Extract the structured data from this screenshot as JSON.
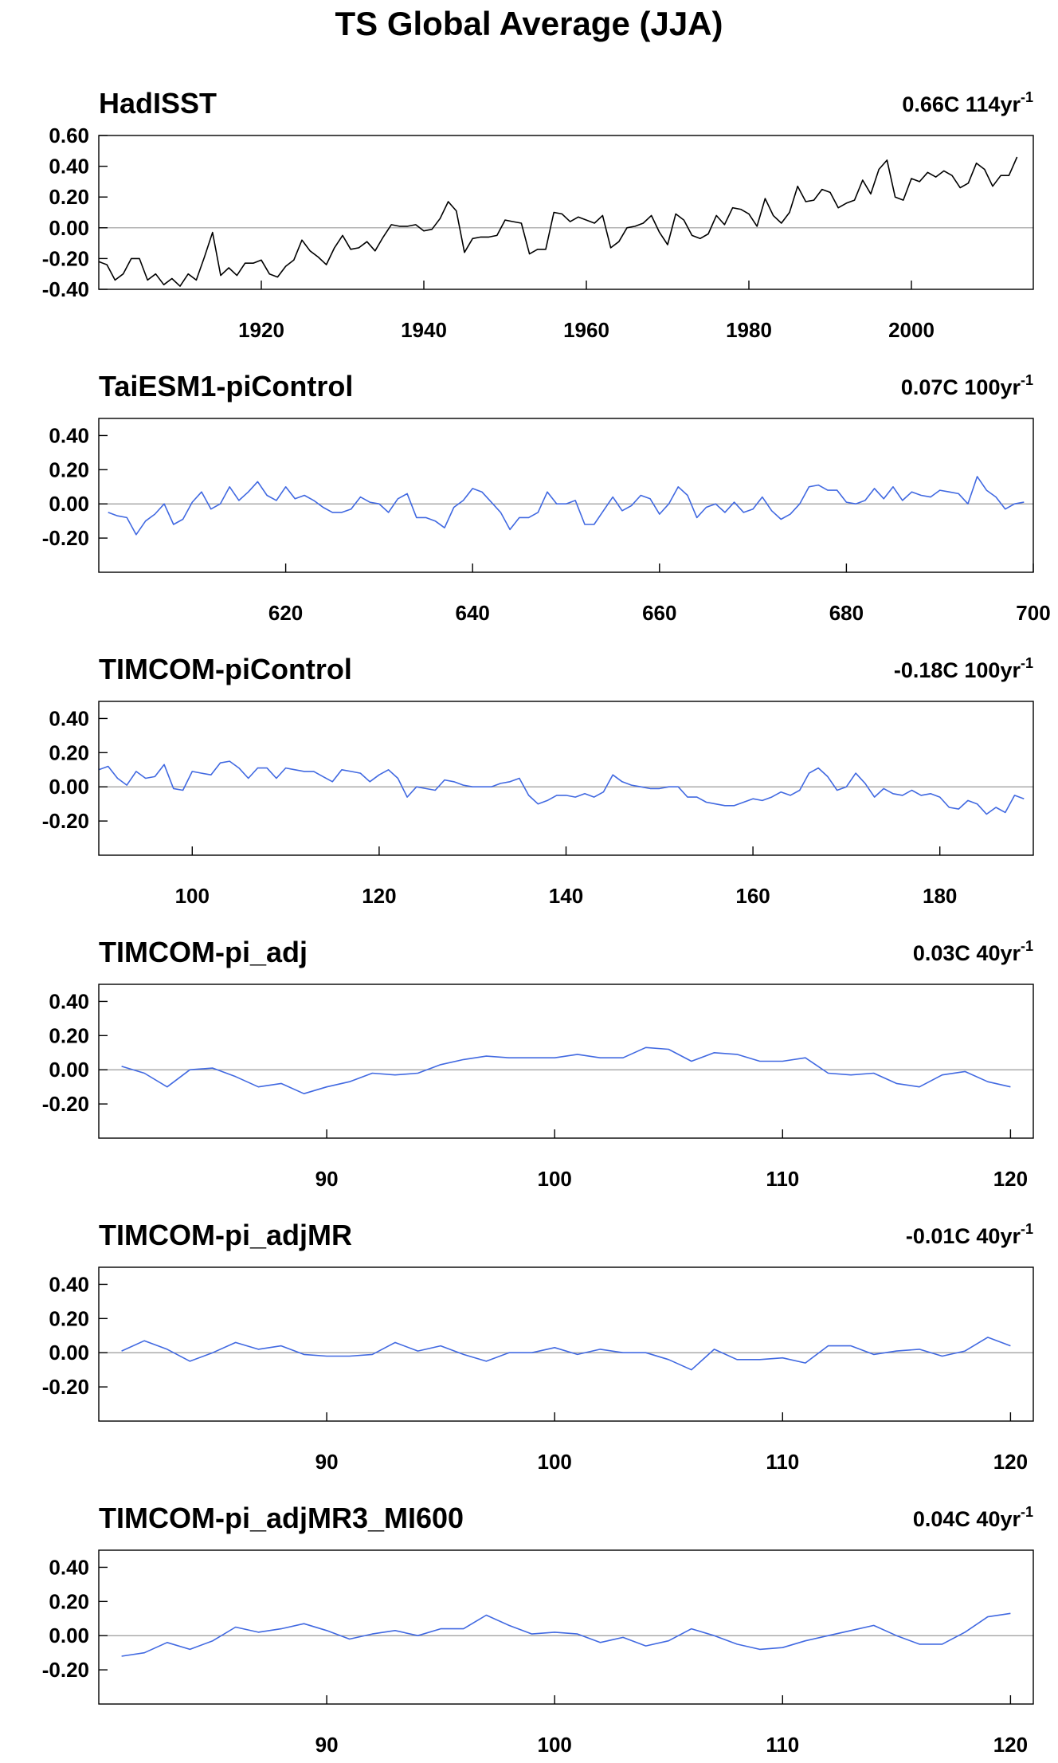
{
  "figure": {
    "title": "TS Global Average (JJA)"
  },
  "colors": {
    "observed": "#000000",
    "model": "#4169e1",
    "zero_line": "#9a9a9a"
  },
  "chart_data": [
    {
      "type": "line",
      "title": "HadISST",
      "trend": {
        "value": "0.66C 114yr",
        "exp": "-1"
      },
      "color": "#000000",
      "xlim": [
        1900,
        2015
      ],
      "ylim": [
        -0.4,
        0.6
      ],
      "yticks": [
        -0.4,
        -0.2,
        0.0,
        0.2,
        0.4,
        0.6
      ],
      "ytick_labels": [
        "-0.40",
        "-0.20",
        "0.00",
        "0.20",
        "0.40",
        "0.60"
      ],
      "xticks": [
        1920,
        1940,
        1960,
        1980,
        2000
      ],
      "xtick_labels": [
        "1920",
        "1940",
        "1960",
        "1980",
        "2000"
      ],
      "x_start": 1900,
      "y": [
        -0.22,
        -0.24,
        -0.34,
        -0.3,
        -0.2,
        -0.2,
        -0.34,
        -0.3,
        -0.37,
        -0.33,
        -0.38,
        -0.3,
        -0.34,
        -0.19,
        -0.03,
        -0.31,
        -0.26,
        -0.31,
        -0.23,
        -0.23,
        -0.21,
        -0.3,
        -0.32,
        -0.25,
        -0.21,
        -0.08,
        -0.15,
        -0.19,
        -0.24,
        -0.13,
        -0.05,
        -0.14,
        -0.13,
        -0.09,
        -0.15,
        -0.06,
        0.02,
        0.01,
        0.01,
        0.02,
        -0.02,
        -0.01,
        0.06,
        0.17,
        0.11,
        -0.16,
        -0.07,
        -0.06,
        -0.06,
        -0.05,
        0.05,
        0.04,
        0.03,
        -0.17,
        -0.14,
        -0.14,
        0.1,
        0.09,
        0.04,
        0.07,
        0.05,
        0.03,
        0.08,
        -0.13,
        -0.09,
        0.0,
        0.01,
        0.03,
        0.08,
        -0.03,
        -0.11,
        0.09,
        0.05,
        -0.05,
        -0.07,
        -0.04,
        0.08,
        0.02,
        0.13,
        0.12,
        0.09,
        0.01,
        0.19,
        0.08,
        0.03,
        0.1,
        0.27,
        0.17,
        0.18,
        0.25,
        0.23,
        0.13,
        0.16,
        0.18,
        0.31,
        0.22,
        0.38,
        0.44,
        0.2,
        0.18,
        0.32,
        0.3,
        0.36,
        0.33,
        0.37,
        0.34,
        0.26,
        0.29,
        0.42,
        0.38,
        0.27,
        0.34,
        0.34,
        0.46
      ]
    },
    {
      "type": "line",
      "title": "TaiESM1-piControl",
      "trend": {
        "value": "0.07C 100yr",
        "exp": "-1"
      },
      "color": "#4169e1",
      "xlim": [
        600,
        700
      ],
      "ylim": [
        -0.4,
        0.5
      ],
      "yticks": [
        -0.2,
        0.0,
        0.2,
        0.4
      ],
      "ytick_labels": [
        "-0.20",
        "0.00",
        "0.20",
        "0.40"
      ],
      "xticks": [
        620,
        640,
        660,
        680,
        700
      ],
      "xtick_labels": [
        "620",
        "640",
        "660",
        "680",
        "700"
      ],
      "x_start": 601,
      "y": [
        -0.05,
        -0.07,
        -0.08,
        -0.18,
        -0.1,
        -0.06,
        0.0,
        -0.12,
        -0.09,
        0.01,
        0.07,
        -0.03,
        0.0,
        0.1,
        0.02,
        0.07,
        0.13,
        0.05,
        0.02,
        0.1,
        0.03,
        0.05,
        0.02,
        -0.02,
        -0.05,
        -0.05,
        -0.03,
        0.04,
        0.01,
        0.0,
        -0.05,
        0.03,
        0.06,
        -0.08,
        -0.08,
        -0.1,
        -0.14,
        -0.02,
        0.02,
        0.09,
        0.07,
        0.01,
        -0.05,
        -0.15,
        -0.08,
        -0.08,
        -0.05,
        0.07,
        0.0,
        0.0,
        0.02,
        -0.12,
        -0.12,
        -0.04,
        0.04,
        -0.04,
        -0.01,
        0.05,
        0.03,
        -0.06,
        0.0,
        0.1,
        0.05,
        -0.08,
        -0.02,
        0.0,
        -0.05,
        0.01,
        -0.05,
        -0.03,
        0.04,
        -0.04,
        -0.09,
        -0.06,
        0.0,
        0.1,
        0.11,
        0.08,
        0.08,
        0.01,
        0.0,
        0.02,
        0.09,
        0.03,
        0.1,
        0.02,
        0.07,
        0.05,
        0.04,
        0.08,
        0.07,
        0.06,
        0.0,
        0.16,
        0.08,
        0.04,
        -0.03,
        0.0,
        0.01
      ]
    },
    {
      "type": "line",
      "title": "TIMCOM-piControl",
      "trend": {
        "value": "-0.18C 100yr",
        "exp": "-1"
      },
      "color": "#4169e1",
      "xlim": [
        90,
        190
      ],
      "ylim": [
        -0.4,
        0.5
      ],
      "yticks": [
        -0.2,
        0.0,
        0.2,
        0.4
      ],
      "ytick_labels": [
        "-0.20",
        "0.00",
        "0.20",
        "0.40"
      ],
      "xticks": [
        100,
        120,
        140,
        160,
        180
      ],
      "xtick_labels": [
        "100",
        "120",
        "140",
        "160",
        "180"
      ],
      "x_start": 90,
      "y": [
        0.1,
        0.12,
        0.05,
        0.01,
        0.09,
        0.05,
        0.06,
        0.13,
        -0.01,
        -0.02,
        0.09,
        0.08,
        0.07,
        0.14,
        0.15,
        0.11,
        0.05,
        0.11,
        0.11,
        0.05,
        0.11,
        0.1,
        0.09,
        0.09,
        0.06,
        0.03,
        0.1,
        0.09,
        0.08,
        0.03,
        0.07,
        0.1,
        0.05,
        -0.06,
        0.0,
        -0.01,
        -0.02,
        0.04,
        0.03,
        0.01,
        0.0,
        0.0,
        0.0,
        0.02,
        0.03,
        0.05,
        -0.05,
        -0.1,
        -0.08,
        -0.05,
        -0.05,
        -0.06,
        -0.04,
        -0.06,
        -0.03,
        0.07,
        0.03,
        0.01,
        0.0,
        -0.01,
        -0.01,
        0.0,
        0.0,
        -0.06,
        -0.06,
        -0.09,
        -0.1,
        -0.11,
        -0.11,
        -0.09,
        -0.07,
        -0.08,
        -0.06,
        -0.03,
        -0.05,
        -0.02,
        0.08,
        0.11,
        0.06,
        -0.02,
        0.0,
        0.08,
        0.02,
        -0.06,
        -0.01,
        -0.04,
        -0.05,
        -0.02,
        -0.05,
        -0.04,
        -0.06,
        -0.12,
        -0.13,
        -0.08,
        -0.1,
        -0.16,
        -0.12,
        -0.15,
        -0.05,
        -0.07
      ]
    },
    {
      "type": "line",
      "title": "TIMCOM-pi_adj",
      "trend": {
        "value": "0.03C 40yr",
        "exp": "-1"
      },
      "color": "#4169e1",
      "xlim": [
        80,
        121
      ],
      "ylim": [
        -0.4,
        0.5
      ],
      "yticks": [
        -0.2,
        0.0,
        0.2,
        0.4
      ],
      "ytick_labels": [
        "-0.20",
        "0.00",
        "0.20",
        "0.40"
      ],
      "xticks": [
        90,
        100,
        110,
        120
      ],
      "xtick_labels": [
        "90",
        "100",
        "110",
        "120"
      ],
      "x_start": 81,
      "y": [
        0.02,
        -0.02,
        -0.1,
        0.0,
        0.01,
        -0.04,
        -0.1,
        -0.08,
        -0.14,
        -0.1,
        -0.07,
        -0.02,
        -0.03,
        -0.02,
        0.03,
        0.06,
        0.08,
        0.07,
        0.07,
        0.07,
        0.09,
        0.07,
        0.07,
        0.13,
        0.12,
        0.05,
        0.1,
        0.09,
        0.05,
        0.05,
        0.07,
        -0.02,
        -0.03,
        -0.02,
        -0.08,
        -0.1,
        -0.03,
        -0.01,
        -0.07,
        -0.1
      ]
    },
    {
      "type": "line",
      "title": "TIMCOM-pi_adjMR",
      "trend": {
        "value": "-0.01C 40yr",
        "exp": "-1"
      },
      "color": "#4169e1",
      "xlim": [
        80,
        121
      ],
      "ylim": [
        -0.4,
        0.5
      ],
      "yticks": [
        -0.2,
        0.0,
        0.2,
        0.4
      ],
      "ytick_labels": [
        "-0.20",
        "0.00",
        "0.20",
        "0.40"
      ],
      "xticks": [
        90,
        100,
        110,
        120
      ],
      "xtick_labels": [
        "90",
        "100",
        "110",
        "120"
      ],
      "x_start": 81,
      "y": [
        0.01,
        0.07,
        0.02,
        -0.05,
        0.0,
        0.06,
        0.02,
        0.04,
        -0.01,
        -0.02,
        -0.02,
        -0.01,
        0.06,
        0.01,
        0.04,
        -0.01,
        -0.05,
        0.0,
        0.0,
        0.03,
        -0.01,
        0.02,
        0.0,
        0.0,
        -0.04,
        -0.1,
        0.02,
        -0.04,
        -0.04,
        -0.03,
        -0.06,
        0.04,
        0.04,
        -0.01,
        0.01,
        0.02,
        -0.02,
        0.01,
        0.09,
        0.04
      ]
    },
    {
      "type": "line",
      "title": "TIMCOM-pi_adjMR3_MI600",
      "trend": {
        "value": "0.04C 40yr",
        "exp": "-1"
      },
      "color": "#4169e1",
      "xlim": [
        80,
        121
      ],
      "ylim": [
        -0.4,
        0.5
      ],
      "yticks": [
        -0.2,
        0.0,
        0.2,
        0.4
      ],
      "ytick_labels": [
        "-0.20",
        "0.00",
        "0.20",
        "0.40"
      ],
      "xticks": [
        90,
        100,
        110,
        120
      ],
      "xtick_labels": [
        "90",
        "100",
        "110",
        "120"
      ],
      "x_start": 81,
      "y": [
        -0.12,
        -0.1,
        -0.04,
        -0.08,
        -0.03,
        0.05,
        0.02,
        0.04,
        0.07,
        0.03,
        -0.02,
        0.01,
        0.03,
        0.0,
        0.04,
        0.04,
        0.12,
        0.06,
        0.01,
        0.02,
        0.01,
        -0.04,
        -0.01,
        -0.06,
        -0.03,
        0.04,
        0.0,
        -0.05,
        -0.08,
        -0.07,
        -0.03,
        0.0,
        0.03,
        0.06,
        0.0,
        -0.05,
        -0.05,
        0.02,
        0.11,
        0.13
      ]
    }
  ]
}
